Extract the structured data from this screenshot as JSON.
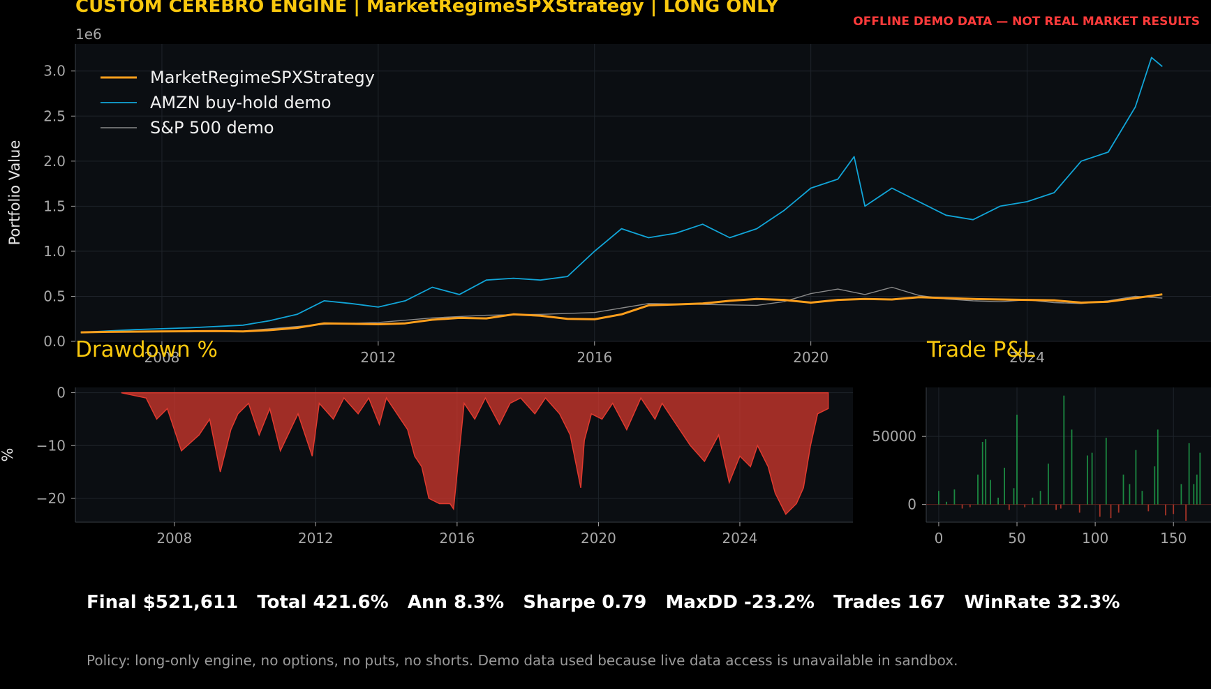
{
  "header": {
    "title": "CUSTOM CEREBRO ENGINE | MarketRegimeSPXStrategy | LONG ONLY",
    "warning": "OFFLINE DEMO DATA — NOT REAL MARKET RESULTS"
  },
  "colors": {
    "title": "#f9c80e",
    "warning": "#ff3b3b",
    "strategy": "#ff9f1c",
    "amzn": "#11a5d8",
    "spx": "#8a8a8a",
    "drawdown": "#e03a2f",
    "win": "#1f9e4a",
    "loss": "#c0392b",
    "panel": "#0b0e12",
    "grid": "#1f242b",
    "tick_text": "#a8a8a8"
  },
  "chart_data": [
    {
      "type": "line",
      "ylabel": "Portfolio Value",
      "y_multiplier_label": "1e6",
      "y_ticks": [
        "0.0",
        "0.5",
        "1.0",
        "1.5",
        "2.0",
        "2.5",
        "3.0"
      ],
      "x_ticks": [
        "2008",
        "2012",
        "2016",
        "2020",
        "2024"
      ],
      "xlim": [
        2006.4,
        2027.4
      ],
      "ylim": [
        0,
        3300000
      ],
      "legend_position": "top-left",
      "series": [
        {
          "name": "MarketRegimeSPXStrategy",
          "x": [
            2006.5,
            2007.0,
            2008.0,
            2009.0,
            2009.5,
            2010.0,
            2010.5,
            2011.0,
            2011.5,
            2012.0,
            2012.5,
            2013.0,
            2013.5,
            2014.0,
            2014.5,
            2015.0,
            2015.5,
            2016.0,
            2016.5,
            2017.0,
            2017.5,
            2018.0,
            2018.5,
            2019.0,
            2019.5,
            2020.0,
            2020.5,
            2021.0,
            2021.5,
            2022.0,
            2022.5,
            2023.0,
            2023.5,
            2024.0,
            2024.5,
            2025.0,
            2025.5,
            2026.0,
            2026.5
          ],
          "y": [
            100000,
            105000,
            110000,
            115000,
            110000,
            125000,
            150000,
            200000,
            195000,
            190000,
            200000,
            240000,
            260000,
            255000,
            300000,
            285000,
            250000,
            245000,
            300000,
            400000,
            410000,
            420000,
            450000,
            470000,
            460000,
            430000,
            460000,
            470000,
            465000,
            490000,
            480000,
            470000,
            465000,
            460000,
            455000,
            430000,
            440000,
            480000,
            521611
          ]
        },
        {
          "name": "AMZN buy-hold demo",
          "x": [
            2006.5,
            2007.5,
            2008.5,
            2009.5,
            2010.0,
            2010.5,
            2011.0,
            2011.5,
            2012.0,
            2012.5,
            2013.0,
            2013.5,
            2014.0,
            2014.5,
            2015.0,
            2015.5,
            2016.0,
            2016.5,
            2017.0,
            2017.5,
            2018.0,
            2018.5,
            2019.0,
            2019.5,
            2020.0,
            2020.5,
            2020.8,
            2021.0,
            2021.5,
            2022.0,
            2022.5,
            2023.0,
            2023.5,
            2024.0,
            2024.5,
            2025.0,
            2025.5,
            2026.0,
            2026.3,
            2026.5
          ],
          "y": [
            100000,
            130000,
            150000,
            180000,
            230000,
            300000,
            450000,
            420000,
            380000,
            450000,
            600000,
            520000,
            680000,
            700000,
            680000,
            720000,
            1000000,
            1250000,
            1150000,
            1200000,
            1300000,
            1150000,
            1250000,
            1450000,
            1700000,
            1800000,
            2050000,
            1500000,
            1700000,
            1550000,
            1400000,
            1350000,
            1500000,
            1550000,
            1650000,
            2000000,
            2100000,
            2600000,
            3150000,
            3050000
          ]
        },
        {
          "name": "S&P 500 demo",
          "x": [
            2006.5,
            2007.5,
            2008.5,
            2009.5,
            2010.0,
            2011.0,
            2012.0,
            2013.0,
            2014.0,
            2015.0,
            2016.0,
            2017.0,
            2018.0,
            2019.0,
            2019.5,
            2020.0,
            2020.5,
            2021.0,
            2021.5,
            2022.0,
            2022.5,
            2023.0,
            2023.5,
            2024.0,
            2024.5,
            2025.0,
            2025.5,
            2026.0,
            2026.5
          ],
          "y": [
            100000,
            110000,
            105000,
            115000,
            140000,
            190000,
            210000,
            260000,
            290000,
            300000,
            320000,
            420000,
            410000,
            400000,
            440000,
            530000,
            580000,
            520000,
            600000,
            510000,
            470000,
            450000,
            440000,
            460000,
            430000,
            420000,
            450000,
            500000,
            480000
          ]
        }
      ]
    },
    {
      "type": "area",
      "title": "Drawdown %",
      "ylabel": "%",
      "y_ticks": [
        "0",
        "−10",
        "−20"
      ],
      "x_ticks": [
        "2008",
        "2012",
        "2016",
        "2020",
        "2024"
      ],
      "xlim": [
        2005.2,
        2027.2
      ],
      "ylim": [
        -24.5,
        1
      ],
      "x": [
        2006.5,
        2007.2,
        2007.5,
        2007.8,
        2008.2,
        2008.7,
        2009.0,
        2009.3,
        2009.6,
        2009.8,
        2010.1,
        2010.4,
        2010.7,
        2011.0,
        2011.5,
        2011.9,
        2012.1,
        2012.5,
        2012.8,
        2013.2,
        2013.5,
        2013.8,
        2014.0,
        2014.4,
        2014.6,
        2014.8,
        2015.0,
        2015.2,
        2015.5,
        2015.8,
        2015.9,
        2016.2,
        2016.5,
        2016.8,
        2017.2,
        2017.5,
        2017.8,
        2018.2,
        2018.5,
        2018.9,
        2019.2,
        2019.5,
        2019.6,
        2019.8,
        2020.1,
        2020.4,
        2020.8,
        2021.2,
        2021.6,
        2021.8,
        2022.2,
        2022.6,
        2023.0,
        2023.4,
        2023.7,
        2024.0,
        2024.3,
        2024.5,
        2024.8,
        2025.0,
        2025.3,
        2025.6,
        2025.8,
        2026.0,
        2026.2,
        2026.5
      ],
      "y": [
        0,
        -1,
        -5,
        -3,
        -11,
        -8,
        -5,
        -15,
        -7,
        -4,
        -2,
        -8,
        -3,
        -11,
        -4,
        -12,
        -2,
        -5,
        -1,
        -4,
        -1,
        -6,
        -1,
        -5,
        -7,
        -12,
        -14,
        -20,
        -21,
        -21,
        -22,
        -2,
        -5,
        -1,
        -6,
        -2,
        -1,
        -4,
        -1,
        -4,
        -8,
        -18,
        -9,
        -4,
        -5,
        -2,
        -7,
        -1,
        -5,
        -2,
        -6,
        -10,
        -13,
        -8,
        -17,
        -12,
        -14,
        -10,
        -14,
        -19,
        -23,
        -21,
        -18,
        -10,
        -4,
        -3
      ]
    },
    {
      "type": "bar",
      "title": "Trade P&L",
      "y_ticks": [
        "0",
        "50000"
      ],
      "x_ticks": [
        "0",
        "50",
        "100",
        "150"
      ],
      "xlim": [
        -8,
        174
      ],
      "ylim": [
        -13000,
        86000
      ],
      "x": [
        0,
        5,
        10,
        15,
        20,
        25,
        28,
        30,
        33,
        38,
        42,
        45,
        48,
        50,
        55,
        60,
        65,
        70,
        75,
        78,
        80,
        85,
        90,
        95,
        98,
        103,
        107,
        110,
        115,
        118,
        122,
        126,
        130,
        134,
        138,
        140,
        145,
        150,
        155,
        158,
        160,
        163,
        165,
        167
      ],
      "values": [
        10000,
        2000,
        11000,
        -3000,
        -2000,
        22000,
        46000,
        48000,
        18000,
        5000,
        27000,
        -4000,
        12000,
        66000,
        -2000,
        5000,
        10000,
        30000,
        -4000,
        -3000,
        80000,
        55000,
        -6000,
        36000,
        38000,
        -9000,
        49000,
        -10000,
        -6000,
        22000,
        15000,
        40000,
        10000,
        -5000,
        28000,
        55000,
        -8000,
        -7000,
        15000,
        -12000,
        45000,
        15000,
        22000,
        38000
      ]
    }
  ],
  "stats": {
    "line": "Final $521,611   Total 421.6%   Ann 8.3%   Sharpe 0.79   MaxDD -23.2%   Trades 167   WinRate 32.3%"
  },
  "policy": {
    "text": "Policy: long-only engine, no options, no puts, no shorts. Demo data used because live data access is unavailable in sandbox."
  }
}
